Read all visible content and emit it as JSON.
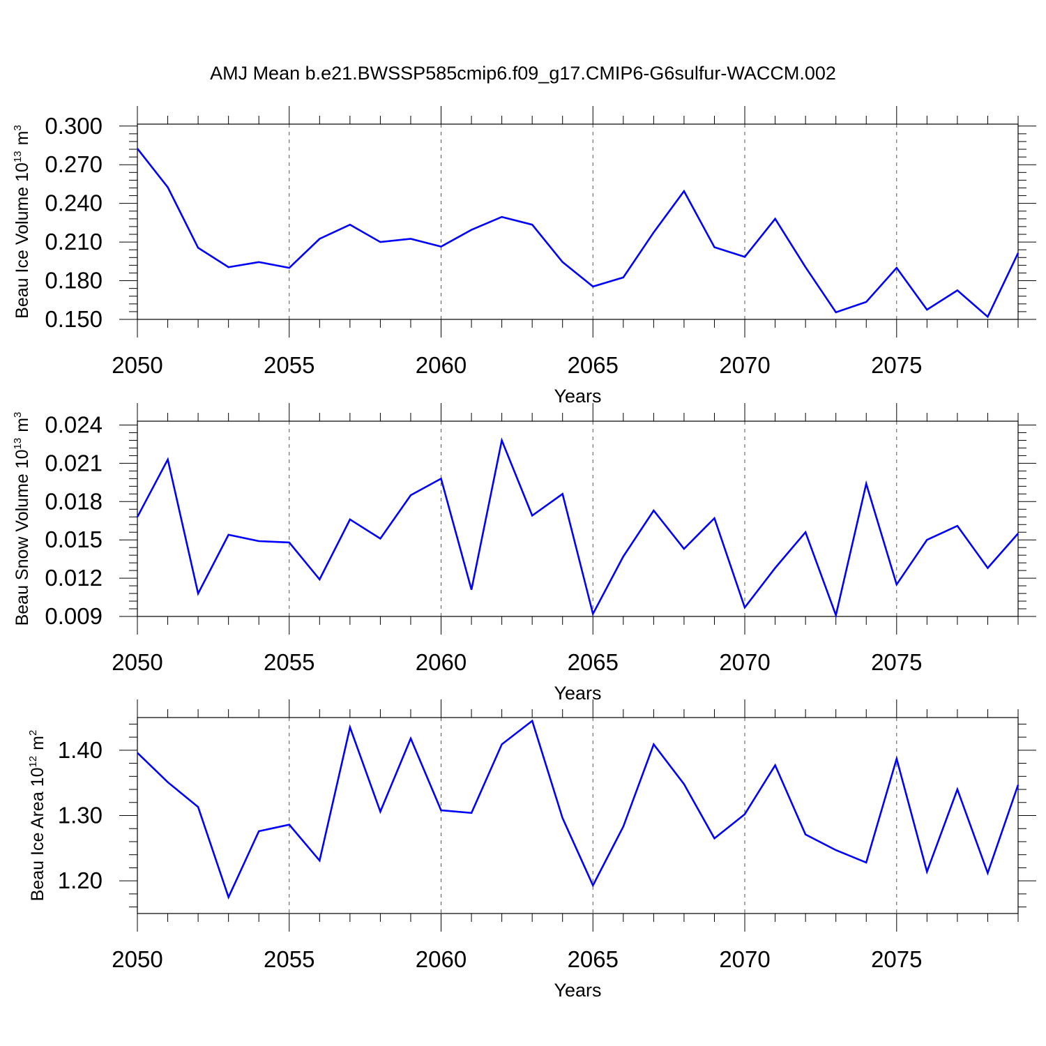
{
  "chart_data": {
    "title": "AMJ Mean b.e21.BWSSP585cmip6.f09_g17.CMIP6-G6sulfur-WACCM.002",
    "series_color": "#0000ff",
    "panels": [
      {
        "type": "line",
        "ylabel_text": "Beau Ice Volume 10",
        "ylabel_exp": "13",
        "ylabel_unit": "m",
        "ylabel_unit_exp": "3",
        "xlabel": "Years",
        "xlim": [
          2050,
          2079
        ],
        "ylim": [
          0.15,
          0.3015
        ],
        "yticks": [
          0.15,
          0.18,
          0.21,
          0.24,
          0.27,
          0.3
        ],
        "ytick_labels": [
          "0.150",
          "0.180",
          "0.210",
          "0.240",
          "0.270",
          "0.300"
        ],
        "xticks": [
          2050,
          2055,
          2060,
          2065,
          2070,
          2075
        ],
        "xtick_labels": [
          "2050",
          "2055",
          "2060",
          "2065",
          "2070",
          "2075"
        ],
        "x": [
          2050,
          2051,
          2052,
          2053,
          2054,
          2055,
          2056,
          2057,
          2058,
          2059,
          2060,
          2061,
          2062,
          2063,
          2064,
          2065,
          2066,
          2067,
          2068,
          2069,
          2070,
          2071,
          2072,
          2073,
          2074,
          2075,
          2076,
          2077,
          2078,
          2079
        ],
        "values": [
          0.2825,
          0.2525,
          0.2055,
          0.1905,
          0.1945,
          0.19,
          0.2125,
          0.2235,
          0.21,
          0.2125,
          0.2065,
          0.2195,
          0.2295,
          0.2235,
          0.1945,
          0.1755,
          0.1825,
          0.2175,
          0.2495,
          0.206,
          0.1985,
          0.228,
          0.1905,
          0.1555,
          0.1635,
          0.19,
          0.1575,
          0.1725,
          0.152,
          0.2015
        ]
      },
      {
        "type": "line",
        "ylabel_text": "Beau Snow Volume 10",
        "ylabel_exp": "13",
        "ylabel_unit": "m",
        "ylabel_unit_exp": "3",
        "xlabel": "Years",
        "xlim": [
          2050,
          2079
        ],
        "ylim": [
          0.009,
          0.0243
        ],
        "yticks": [
          0.009,
          0.012,
          0.015,
          0.018,
          0.021,
          0.024
        ],
        "ytick_labels": [
          "0.009",
          "0.012",
          "0.015",
          "0.018",
          "0.021",
          "0.024"
        ],
        "xticks": [
          2050,
          2055,
          2060,
          2065,
          2070,
          2075
        ],
        "xtick_labels": [
          "2050",
          "2055",
          "2060",
          "2065",
          "2070",
          "2075"
        ],
        "x": [
          2050,
          2051,
          2052,
          2053,
          2054,
          2055,
          2056,
          2057,
          2058,
          2059,
          2060,
          2061,
          2062,
          2063,
          2064,
          2065,
          2066,
          2067,
          2068,
          2069,
          2070,
          2071,
          2072,
          2073,
          2074,
          2075,
          2076,
          2077,
          2078,
          2079
        ],
        "values": [
          0.0168,
          0.0213,
          0.0108,
          0.0154,
          0.0149,
          0.0148,
          0.0119,
          0.0166,
          0.0151,
          0.0185,
          0.0198,
          0.0111,
          0.0228,
          0.0169,
          0.0186,
          0.0092,
          0.0137,
          0.0173,
          0.0143,
          0.0167,
          0.0097,
          0.0128,
          0.0156,
          0.0091,
          0.0194,
          0.0115,
          0.015,
          0.0161,
          0.0128,
          0.0155
        ]
      },
      {
        "type": "line",
        "ylabel_text": "Beau Ice Area 10",
        "ylabel_exp": "12",
        "ylabel_unit": "m",
        "ylabel_unit_exp": "2",
        "xlabel": "Years",
        "xlim": [
          2050,
          2079
        ],
        "ylim": [
          1.15,
          1.45
        ],
        "yticks": [
          1.2,
          1.3,
          1.4
        ],
        "ytick_labels": [
          "1.20",
          "1.30",
          "1.40"
        ],
        "xticks": [
          2050,
          2055,
          2060,
          2065,
          2070,
          2075
        ],
        "xtick_labels": [
          "2050",
          "2055",
          "2060",
          "2065",
          "2070",
          "2075"
        ],
        "x": [
          2050,
          2051,
          2052,
          2053,
          2054,
          2055,
          2056,
          2057,
          2058,
          2059,
          2060,
          2061,
          2062,
          2063,
          2064,
          2065,
          2066,
          2067,
          2068,
          2069,
          2070,
          2071,
          2072,
          2073,
          2074,
          2075,
          2076,
          2077,
          2078,
          2079
        ],
        "values": [
          1.396,
          1.351,
          1.313,
          1.175,
          1.276,
          1.286,
          1.231,
          1.435,
          1.306,
          1.418,
          1.308,
          1.304,
          1.409,
          1.445,
          1.296,
          1.193,
          1.283,
          1.409,
          1.348,
          1.265,
          1.302,
          1.377,
          1.271,
          1.247,
          1.228,
          1.387,
          1.214,
          1.34,
          1.212,
          1.347
        ]
      }
    ]
  }
}
